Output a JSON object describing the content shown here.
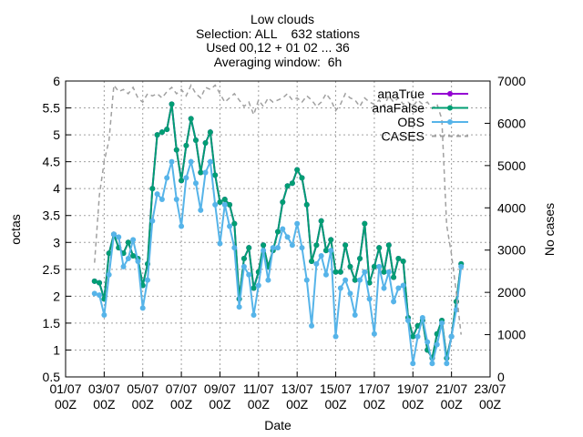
{
  "chart_data": {
    "type": "line",
    "title": [
      "Low clouds",
      "Selection: ALL    632 stations",
      "Used 00,12 + 01 02 ... 36",
      "Averaging window:  6h"
    ],
    "xlabel": "Date",
    "ylabel": "octas",
    "y2label": "No cases",
    "x": [
      36,
      42,
      48,
      54,
      60,
      66,
      72,
      78,
      84,
      90,
      96,
      102,
      108,
      114,
      120,
      126,
      132,
      138,
      144,
      150,
      156,
      162,
      168,
      174,
      180,
      186,
      192,
      198,
      204,
      210,
      216,
      222,
      228,
      234,
      240,
      246,
      252,
      258,
      264,
      270,
      276,
      282,
      288,
      294,
      300,
      306,
      312,
      318,
      324,
      330,
      336,
      342,
      348,
      354,
      360,
      366,
      372,
      378,
      384,
      390,
      396,
      402,
      408,
      414,
      420,
      426,
      432,
      438,
      444,
      450,
      456,
      462,
      468,
      474,
      480,
      486,
      492
    ],
    "series": [
      {
        "name": "anaTrue",
        "color": "#9400d3",
        "values": [
          2.28,
          2.25,
          1.95,
          2.8,
          3.15,
          2.9,
          2.8,
          3.0,
          2.75,
          2.7,
          2.2,
          2.6,
          4.0,
          5.0,
          5.05,
          5.1,
          5.57,
          4.72,
          4.15,
          4.8,
          5.3,
          4.9,
          4.3,
          4.85,
          5.05,
          4.25,
          3.75,
          3.8,
          3.7,
          3.35,
          1.95,
          2.7,
          2.9,
          2.15,
          2.45,
          2.95,
          2.55,
          2.85,
          3.2,
          3.75,
          4.05,
          4.1,
          4.35,
          4.2,
          3.7,
          2.65,
          2.95,
          3.4,
          2.85,
          3.05,
          2.45,
          2.45,
          2.95,
          2.55,
          2.3,
          2.7,
          3.35,
          2.25,
          2.55,
          2.9,
          2.45,
          2.95,
          2.35,
          2.7,
          2.65,
          1.6,
          1.25,
          1.45,
          1.55,
          1.0,
          0.85,
          1.3,
          1.55,
          0.85,
          1.25,
          1.9,
          2.6
        ]
      },
      {
        "name": "anaFalse",
        "color": "#009e73",
        "values": [
          2.28,
          2.25,
          1.95,
          2.8,
          3.15,
          2.9,
          2.8,
          3.0,
          2.75,
          2.7,
          2.2,
          2.6,
          4.0,
          5.0,
          5.05,
          5.1,
          5.57,
          4.72,
          4.15,
          4.8,
          5.3,
          4.9,
          4.3,
          4.85,
          5.05,
          4.25,
          3.75,
          3.8,
          3.7,
          3.35,
          1.95,
          2.7,
          2.9,
          2.15,
          2.45,
          2.95,
          2.55,
          2.85,
          3.2,
          3.75,
          4.05,
          4.1,
          4.35,
          4.2,
          3.7,
          2.65,
          2.95,
          3.4,
          2.85,
          3.05,
          2.45,
          2.45,
          2.95,
          2.55,
          2.3,
          2.7,
          3.35,
          2.25,
          2.55,
          2.9,
          2.45,
          2.95,
          2.35,
          2.7,
          2.65,
          1.6,
          1.25,
          1.45,
          1.55,
          1.0,
          0.85,
          1.3,
          1.55,
          0.85,
          1.25,
          1.9,
          2.6
        ]
      },
      {
        "name": "OBS",
        "color": "#56b4e9",
        "values": [
          2.05,
          2.02,
          1.65,
          2.4,
          3.15,
          3.1,
          2.55,
          2.7,
          3.05,
          2.65,
          1.78,
          2.3,
          3.4,
          3.9,
          3.8,
          4.2,
          4.5,
          3.8,
          3.3,
          4.2,
          4.5,
          4.1,
          3.6,
          4.3,
          4.5,
          3.7,
          2.98,
          3.7,
          3.3,
          2.9,
          1.8,
          2.55,
          2.4,
          1.65,
          2.2,
          2.85,
          2.3,
          2.9,
          2.9,
          3.25,
          3.1,
          2.95,
          3.35,
          2.9,
          2.3,
          1.45,
          2.6,
          2.75,
          2.4,
          2.85,
          1.25,
          2.15,
          2.3,
          2.05,
          1.65,
          2.3,
          2.45,
          1.95,
          1.3,
          2.55,
          2.15,
          2.45,
          1.9,
          2.15,
          2.2,
          1.55,
          0.75,
          1.25,
          1.6,
          1.15,
          0.75,
          1.1,
          1.5,
          0.75,
          1.25,
          1.75,
          2.55
        ]
      },
      {
        "name": "CASES",
        "color": "#a0a0a0",
        "axis": "y2",
        "dashed": true,
        "values": [
          2700,
          4300,
          5100,
          5600,
          6900,
          6750,
          6800,
          6700,
          6850,
          6600,
          6500,
          6700,
          6650,
          6700,
          6600,
          6750,
          6850,
          6700,
          6800,
          6650,
          6900,
          6700,
          6600,
          6850,
          6800,
          6900,
          6700,
          6500,
          6600,
          6700,
          6550,
          6400,
          6500,
          6200,
          6550,
          6400,
          6600,
          6500,
          6550,
          6600,
          6700,
          6550,
          6600,
          6500,
          6650,
          6550,
          6400,
          6500,
          6700,
          6550,
          6300,
          6450,
          6700,
          6600,
          6550,
          6400,
          6600,
          6500,
          6450,
          6550,
          6400,
          6650,
          6500,
          6600,
          6450,
          6500,
          6400,
          6550,
          6450,
          6500,
          6350,
          6450,
          6100,
          3600,
          2900,
          2000,
          1000
        ]
      }
    ],
    "xlim": [
      0,
      528
    ],
    "xticks": [
      {
        "value": 0,
        "label": "01/07 00Z"
      },
      {
        "value": 48,
        "label": "03/07 00Z"
      },
      {
        "value": 96,
        "label": "05/07 00Z"
      },
      {
        "value": 144,
        "label": "07/07 00Z"
      },
      {
        "value": 192,
        "label": "09/07 00Z"
      },
      {
        "value": 240,
        "label": "11/07 00Z"
      },
      {
        "value": 288,
        "label": "13/07 00Z"
      },
      {
        "value": 336,
        "label": "15/07 00Z"
      },
      {
        "value": 384,
        "label": "17/07 00Z"
      },
      {
        "value": 432,
        "label": "19/07 00Z"
      },
      {
        "value": 480,
        "label": "21/07 00Z"
      },
      {
        "value": 528,
        "label": "23/07 00Z"
      }
    ],
    "ylim": [
      0.5,
      6
    ],
    "yticks": [
      0.5,
      1,
      1.5,
      2,
      2.5,
      3,
      3.5,
      4,
      4.5,
      5,
      5.5,
      6
    ],
    "y2lim": [
      0,
      7000
    ],
    "y2ticks": [
      0,
      1000,
      2000,
      3000,
      4000,
      5000,
      6000,
      7000
    ],
    "grid": true,
    "legend": "top-right"
  }
}
